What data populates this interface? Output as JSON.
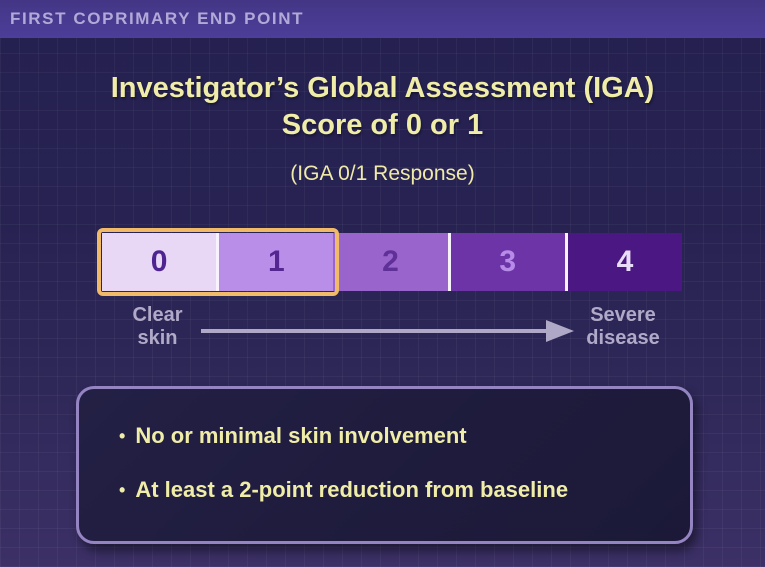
{
  "header": {
    "kicker": "FIRST COPRIMARY END POINT"
  },
  "title": {
    "line1": "Investigator’s Global Assessment (IGA)",
    "line2": "Score of 0 or 1"
  },
  "subtitle": "(IGA 0/1 Response)",
  "scale": {
    "segments": [
      {
        "value": "0",
        "fill": "#e8d8f6",
        "text_color": "#4f2490"
      },
      {
        "value": "1",
        "fill": "#b88ee9",
        "text_color": "#53278f"
      },
      {
        "value": "2",
        "fill": "#9a64cd",
        "text_color": "#5e3098"
      },
      {
        "value": "3",
        "fill": "#6c34a7",
        "text_color": "#b78ce9"
      },
      {
        "value": "4",
        "fill": "#4b1782",
        "text_color": "#e8dcf8"
      }
    ],
    "highlighted_values": [
      "0",
      "1"
    ],
    "highlight_border_color": "#f0ba68",
    "left_label": "Clear\nskin",
    "right_label": "Severe\ndisease"
  },
  "criteria": {
    "bullet_char": "•",
    "bullets": [
      "No or minimal skin involvement",
      "At least a 2-point reduction from baseline"
    ]
  },
  "colors": {
    "header_bar": "#4c3e99",
    "background_top": "#242050",
    "background_bottom": "#3c3066",
    "title_text": "#f0eda8",
    "axis_text": "#b0a9c7",
    "box_border": "#9584c2",
    "box_fill": "#1e1b3c"
  }
}
